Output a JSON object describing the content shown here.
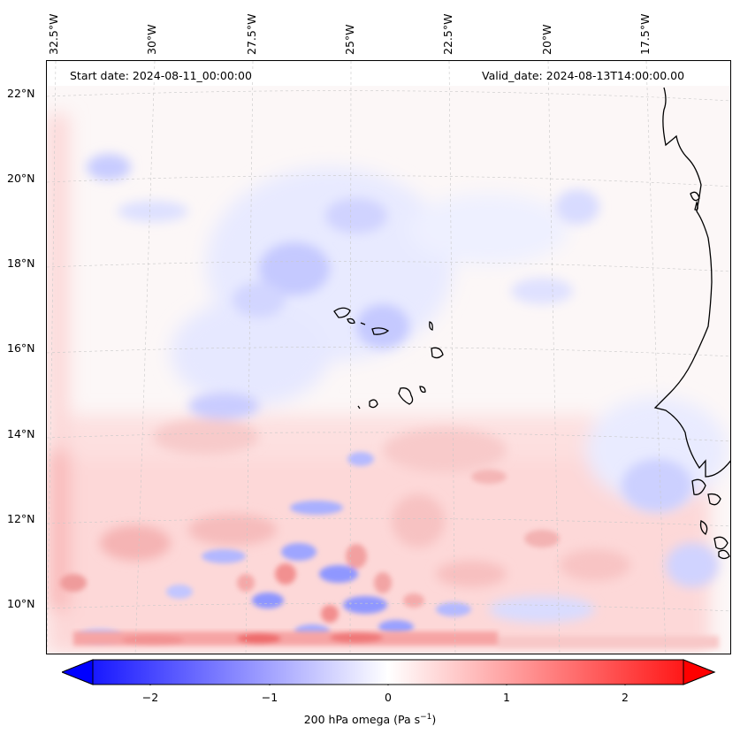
{
  "header": {
    "start_date": "Start date: 2024-08-11_00:00:00",
    "valid_date": "Valid_date: 2024-08-13T14:00:00.00"
  },
  "longitude_labels": [
    "32.5°W",
    "30°W",
    "27.5°W",
    "25°W",
    "22.5°W",
    "20°W",
    "17.5°W"
  ],
  "latitude_labels": [
    "22°N",
    "20°N",
    "18°N",
    "16°N",
    "14°N",
    "12°N",
    "10°N"
  ],
  "colorbar": {
    "ticks": [
      "−2",
      "−1",
      "0",
      "1",
      "2"
    ],
    "label_main": "200 hPa omega (Pa s",
    "label_sup": "−1",
    "label_end": ")",
    "range": [
      -2.6,
      2.6
    ],
    "low_color": "#0000ff",
    "mid_color": "#ffffff",
    "high_color": "#ff0000"
  },
  "colors": {
    "coastline": "#000000",
    "gridline": "#c8c8c8"
  }
}
